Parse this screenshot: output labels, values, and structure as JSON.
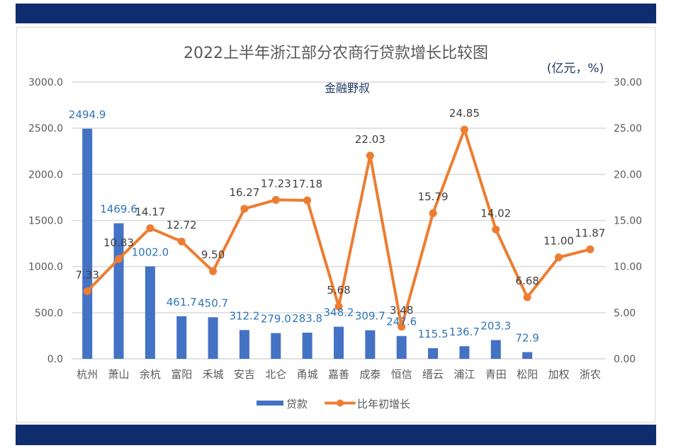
{
  "chart_data": {
    "type": "bar+line",
    "title": "2022上半年浙江部分农商行贷款增长比较图",
    "unit_label": "(亿元，%)",
    "watermark": "金融野叔",
    "categories": [
      "杭州",
      "萧山",
      "余杭",
      "富阳",
      "禾城",
      "安吉",
      "北仑",
      "甬城",
      "嘉善",
      "成泰",
      "恒信",
      "缙云",
      "浦江",
      "青田",
      "松阳",
      "加权",
      "浙农"
    ],
    "series": [
      {
        "name": "贷款",
        "type": "bar",
        "axis": "left",
        "color": "#4472c4",
        "label_color": "#2e75b6",
        "values": [
          2494.9,
          1469.6,
          1002.0,
          461.7,
          450.7,
          312.2,
          279.0,
          283.8,
          348.2,
          309.7,
          247.6,
          115.5,
          136.7,
          203.3,
          72.9,
          null,
          null
        ],
        "labels": [
          "2494.9",
          "1469.6",
          "1002.0",
          "461.7",
          "450.7",
          "312.2",
          "279.0",
          "283.8",
          "348.2",
          "309.7",
          "247.6",
          "115.5",
          "136.7",
          "203.3",
          "72.9",
          "",
          ""
        ]
      },
      {
        "name": "比年初增长",
        "type": "line",
        "axis": "right",
        "color": "#ed7d31",
        "label_color": "#404040",
        "values": [
          7.33,
          10.83,
          14.17,
          12.72,
          9.5,
          16.27,
          17.23,
          17.18,
          5.68,
          22.03,
          3.48,
          15.79,
          24.85,
          14.02,
          6.68,
          11.0,
          11.87
        ],
        "labels": [
          "7.33",
          "10.83",
          "14.17",
          "12.72",
          "9.50",
          "16.27",
          "17.23",
          "17.18",
          "5.68",
          "22.03",
          "3.48",
          "15.79",
          "24.85",
          "14.02",
          "6.68",
          "11.00",
          "11.87"
        ]
      }
    ],
    "y_left": {
      "range": [
        0,
        3000
      ],
      "ticks": [
        "0.0",
        "500.0",
        "1000.0",
        "1500.0",
        "2000.0",
        "2500.0",
        "3000.0"
      ]
    },
    "y_right": {
      "range": [
        0,
        30
      ],
      "ticks": [
        "0.00",
        "5.00",
        "10.00",
        "15.00",
        "20.00",
        "25.00",
        "30.00"
      ]
    },
    "grid": true,
    "legend": "bottom"
  },
  "colors": {
    "banner": "#0f2d6e"
  }
}
